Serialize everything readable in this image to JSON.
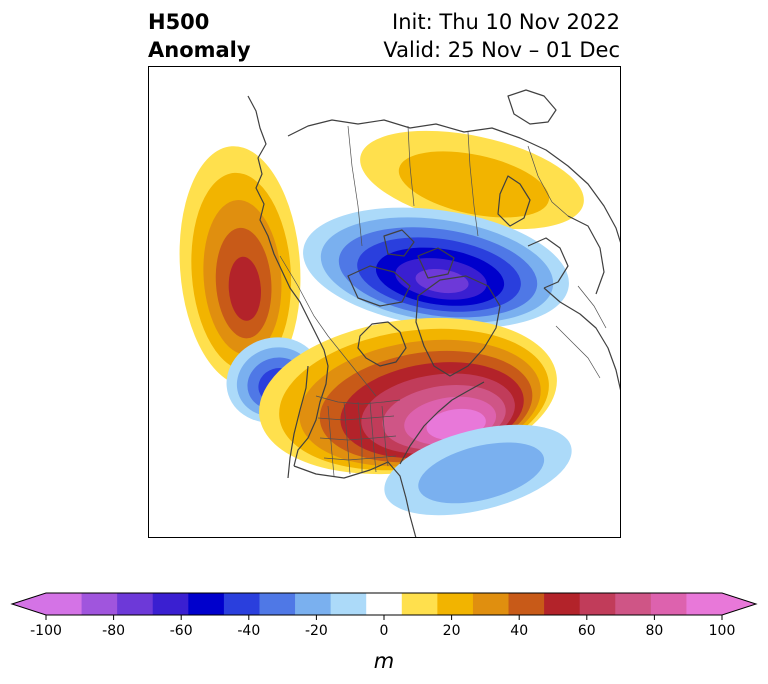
{
  "title": {
    "left_line1": "H500",
    "left_line2": "Anomaly",
    "right_line1": "Init: Thu 10 Nov 2022",
    "right_line2": "Valid: 25 Nov – 01 Dec"
  },
  "colorbar": {
    "ticks": [
      "-100",
      "-80",
      "-60",
      "-40",
      "-20",
      "0",
      "20",
      "40",
      "60",
      "80",
      "100"
    ],
    "unit_label": "m",
    "levels": [
      -100,
      -90,
      -80,
      -70,
      -60,
      -50,
      -40,
      -30,
      -20,
      -10,
      10,
      20,
      30,
      40,
      50,
      60,
      70,
      80,
      90,
      100
    ],
    "colors": [
      "#d473e6",
      "#a055dd",
      "#6d39d8",
      "#3a1fd1",
      "#0000cc",
      "#2a3fdd",
      "#4f78e6",
      "#7ab0ef",
      "#acdaf9",
      "#ffffff",
      "#ffe04d",
      "#f2b400",
      "#e08f0f",
      "#c85a18",
      "#b3232a",
      "#c13c5a",
      "#cf5586",
      "#dd62ae",
      "#e878d9"
    ],
    "under_color": "#d473e6",
    "over_color": "#e878d9"
  },
  "map": {
    "anomalies": [
      {
        "name": "nw-pacific-ridge",
        "peak": 52
      },
      {
        "name": "arctic-russia-ridge",
        "peak": 28
      },
      {
        "name": "polar-vortex-trough",
        "peak": -72
      },
      {
        "name": "ne-pacific-trough",
        "peak": -48
      },
      {
        "name": "north-canada-ridge",
        "peak": 96
      },
      {
        "name": "north-atlantic-trough",
        "peak": -28
      }
    ]
  }
}
